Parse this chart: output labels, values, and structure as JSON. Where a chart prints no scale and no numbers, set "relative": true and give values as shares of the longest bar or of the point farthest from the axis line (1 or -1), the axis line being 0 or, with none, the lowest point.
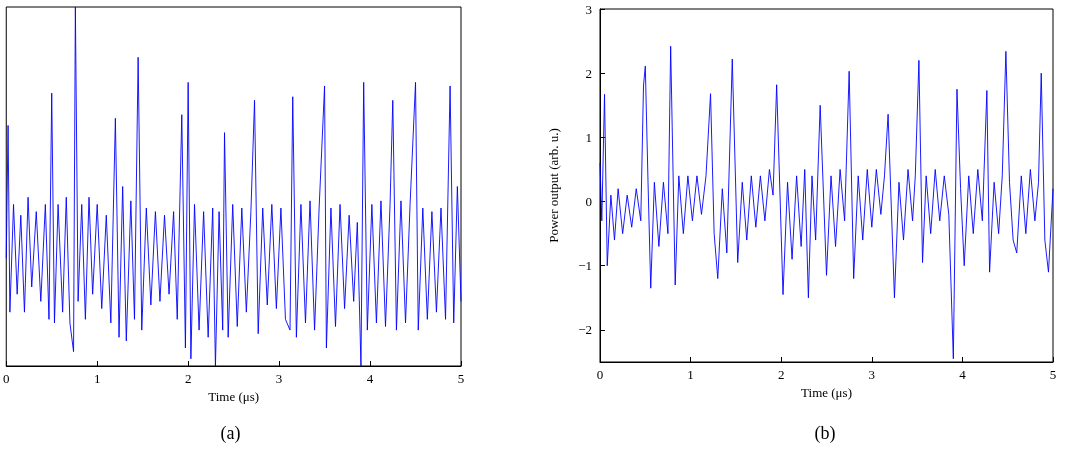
{
  "chart_data": [
    {
      "type": "line",
      "relative": true,
      "xlabel": "Time (μs)",
      "xlim": [
        0,
        5
      ],
      "xticks": [
        0,
        1,
        2,
        3,
        4,
        5
      ],
      "tick_labels": "x",
      "grid": false,
      "marker": "none",
      "line_style": "solid",
      "annotations": [
        "(a)"
      ],
      "series": [
        {
          "color": "#0000ff",
          "x": [
            0,
            0.02,
            0.04,
            0.08,
            0.12,
            0.16,
            0.2,
            0.24,
            0.28,
            0.33,
            0.38,
            0.43,
            0.47,
            0.5,
            0.53,
            0.57,
            0.62,
            0.66,
            0.7,
            0.74,
            0.76,
            0.79,
            0.83,
            0.87,
            0.91,
            0.95,
            1.0,
            1.05,
            1.1,
            1.15,
            1.2,
            1.24,
            1.28,
            1.32,
            1.37,
            1.41,
            1.45,
            1.49,
            1.54,
            1.59,
            1.64,
            1.69,
            1.74,
            1.79,
            1.84,
            1.88,
            1.93,
            1.97,
            2.0,
            2.03,
            2.07,
            2.12,
            2.17,
            2.22,
            2.27,
            2.3,
            2.34,
            2.38,
            2.4,
            2.44,
            2.49,
            2.54,
            2.59,
            2.64,
            2.69,
            2.73,
            2.77,
            2.82,
            2.87,
            2.92,
            2.97,
            3.02,
            3.07,
            3.12,
            3.15,
            3.19,
            3.24,
            3.29,
            3.34,
            3.39,
            3.44,
            3.5,
            3.52,
            3.57,
            3.62,
            3.67,
            3.72,
            3.77,
            3.82,
            3.86,
            3.9,
            3.93,
            3.97,
            4.02,
            4.07,
            4.12,
            4.17,
            4.22,
            4.25,
            4.29,
            4.34,
            4.39,
            4.44,
            4.5,
            4.53,
            4.58,
            4.63,
            4.68,
            4.73,
            4.78,
            4.83,
            4.88,
            4.92,
            4.96,
            5.0
          ],
          "values": [
            0.3,
            0.67,
            0.15,
            0.45,
            0.2,
            0.42,
            0.15,
            0.47,
            0.22,
            0.43,
            0.18,
            0.45,
            0.13,
            0.76,
            0.12,
            0.45,
            0.15,
            0.47,
            0.12,
            0.04,
            1.0,
            0.18,
            0.45,
            0.13,
            0.47,
            0.2,
            0.45,
            0.16,
            0.42,
            0.12,
            0.69,
            0.08,
            0.5,
            0.07,
            0.46,
            0.13,
            0.86,
            0.1,
            0.44,
            0.17,
            0.43,
            0.18,
            0.42,
            0.2,
            0.43,
            0.13,
            0.7,
            0.05,
            0.79,
            0.02,
            0.45,
            0.1,
            0.43,
            0.08,
            0.44,
            0.0,
            0.43,
            0.1,
            0.65,
            0.08,
            0.45,
            0.11,
            0.44,
            0.15,
            0.43,
            0.74,
            0.09,
            0.44,
            0.17,
            0.45,
            0.16,
            0.44,
            0.13,
            0.1,
            0.75,
            0.08,
            0.45,
            0.12,
            0.46,
            0.1,
            0.44,
            0.78,
            0.05,
            0.44,
            0.11,
            0.45,
            0.16,
            0.42,
            0.18,
            0.4,
            0.0,
            0.79,
            0.1,
            0.45,
            0.12,
            0.46,
            0.11,
            0.45,
            0.74,
            0.1,
            0.46,
            0.12,
            0.45,
            0.79,
            0.1,
            0.44,
            0.13,
            0.43,
            0.15,
            0.44,
            0.13,
            0.78,
            0.12,
            0.5,
            0.18
          ]
        }
      ]
    },
    {
      "type": "line",
      "xlabel": "Time (μs)",
      "ylabel": "Power output (arb. u.)",
      "xlim": [
        0,
        5
      ],
      "xticks": [
        0,
        1,
        2,
        3,
        4,
        5
      ],
      "ylim": [
        -2.5,
        3
      ],
      "yticks": [
        -2,
        -1,
        0,
        1,
        2,
        3
      ],
      "grid": false,
      "marker": "none",
      "line_style": "solid",
      "annotations": [
        "(b)"
      ],
      "series": [
        {
          "color": "#0000ff",
          "x": [
            0,
            0.02,
            0.05,
            0.08,
            0.12,
            0.16,
            0.2,
            0.25,
            0.3,
            0.35,
            0.4,
            0.45,
            0.48,
            0.5,
            0.53,
            0.56,
            0.6,
            0.65,
            0.7,
            0.75,
            0.78,
            0.83,
            0.87,
            0.92,
            0.97,
            1.02,
            1.07,
            1.12,
            1.17,
            1.22,
            1.26,
            1.3,
            1.35,
            1.4,
            1.46,
            1.52,
            1.57,
            1.62,
            1.67,
            1.72,
            1.77,
            1.82,
            1.87,
            1.91,
            1.95,
            2.02,
            2.07,
            2.12,
            2.17,
            2.22,
            2.26,
            2.3,
            2.34,
            2.38,
            2.43,
            2.5,
            2.55,
            2.6,
            2.65,
            2.7,
            2.75,
            2.8,
            2.85,
            2.9,
            2.95,
            3.0,
            3.05,
            3.1,
            3.14,
            3.18,
            3.25,
            3.3,
            3.35,
            3.4,
            3.45,
            3.48,
            3.52,
            3.56,
            3.6,
            3.65,
            3.7,
            3.75,
            3.8,
            3.85,
            3.9,
            3.94,
            3.98,
            4.02,
            4.07,
            4.12,
            4.17,
            4.22,
            4.27,
            4.3,
            4.35,
            4.4,
            4.44,
            4.48,
            4.52,
            4.56,
            4.6,
            4.65,
            4.7,
            4.75,
            4.8,
            4.84,
            4.87,
            4.91,
            4.95,
            5.0
          ],
          "values": [
            0.6,
            -0.3,
            1.67,
            -1.0,
            0.1,
            -0.6,
            0.2,
            -0.5,
            0.1,
            -0.4,
            0.2,
            -0.3,
            1.8,
            2.11,
            0.3,
            -1.35,
            0.3,
            -0.7,
            0.3,
            -0.5,
            2.42,
            -1.3,
            0.4,
            -0.5,
            0.4,
            -0.3,
            0.4,
            -0.2,
            0.4,
            1.68,
            -0.5,
            -1.2,
            0.2,
            -0.8,
            2.22,
            -0.95,
            0.3,
            -0.6,
            0.4,
            -0.4,
            0.4,
            -0.3,
            0.5,
            0.1,
            1.82,
            -1.45,
            0.3,
            -0.9,
            0.4,
            -0.7,
            0.5,
            -1.5,
            0.4,
            -0.6,
            1.5,
            -1.15,
            0.4,
            -0.7,
            0.5,
            -0.3,
            2.03,
            -1.2,
            0.4,
            -0.6,
            0.5,
            -0.4,
            0.5,
            -0.2,
            0.4,
            1.36,
            -1.5,
            0.3,
            -0.6,
            0.5,
            -0.3,
            0.4,
            2.2,
            -0.95,
            0.4,
            -0.5,
            0.5,
            -0.3,
            0.4,
            -0.2,
            -2.45,
            1.75,
            0.2,
            -1.0,
            0.4,
            -0.5,
            0.5,
            -0.3,
            1.73,
            -1.1,
            0.3,
            -0.5,
            0.4,
            2.34,
            0.3,
            -0.6,
            -0.8,
            0.4,
            -0.5,
            0.5,
            -0.3,
            0.3,
            2.0,
            -0.6,
            -1.1,
            0.2
          ]
        }
      ]
    }
  ]
}
